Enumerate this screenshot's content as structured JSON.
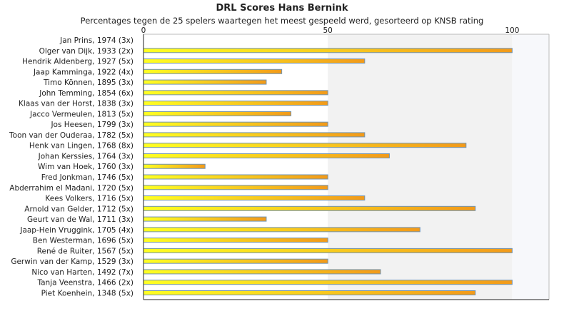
{
  "chart_data": {
    "type": "bar",
    "orientation": "horizontal",
    "title": "DRL Scores Hans Bernink",
    "subtitle": "Percentages tegen de 25 spelers waartegen het meest gespeeld werd, gesorteerd op KNSB rating",
    "xlim": [
      0,
      110
    ],
    "xticks": [
      0,
      50,
      100
    ],
    "grid": false,
    "legend": "none",
    "categories": [
      "Jan Prins, 1974 (3x)",
      "Olger van Dijk, 1933 (2x)",
      "Hendrik Aldenberg, 1927 (5x)",
      "Jaap Kamminga, 1922 (4x)",
      "Timo Können, 1895 (3x)",
      "John Temming, 1854 (6x)",
      "Klaas van der Horst, 1838 (3x)",
      "Jacco Vermeulen, 1813 (5x)",
      "Jos Heesen, 1799 (3x)",
      "Toon van der Ouderaa, 1782 (5x)",
      "Henk van Lingen, 1768 (8x)",
      "Johan Kerssies, 1764 (3x)",
      "Wim van Hoek, 1760 (3x)",
      "Fred Jonkman, 1746 (5x)",
      "Abderrahim el Madani, 1720 (5x)",
      "Kees Volkers, 1716 (5x)",
      "Arnold van Gelder, 1712 (5x)",
      "Geurt van de Wal, 1711 (3x)",
      "Jaap-Hein Vruggink, 1705 (4x)",
      "Ben Westerman, 1696 (5x)",
      "René de Ruiter, 1567 (5x)",
      "Gerwin van der Kamp, 1529 (3x)",
      "Nico van Harten, 1492 (7x)",
      "Tanja Veenstra, 1466 (2x)",
      "Piet Koenhein, 1348 (5x)"
    ],
    "values": [
      0,
      100,
      60,
      37.5,
      33.3,
      50,
      50,
      40,
      50,
      60,
      87.5,
      66.7,
      16.7,
      50,
      50,
      60,
      90,
      33.3,
      75,
      50,
      100,
      50,
      64.3,
      100,
      90
    ],
    "colors": {
      "bar_start": "#ffff22",
      "bar_end": "#f29a1a",
      "bar_border": "#6f93b3",
      "plot_left_bg": "#ffffff",
      "plot_right_bg": "#f2f2f2",
      "plot_edge_bg": "#f7f8fb",
      "axis": "#222222"
    }
  }
}
